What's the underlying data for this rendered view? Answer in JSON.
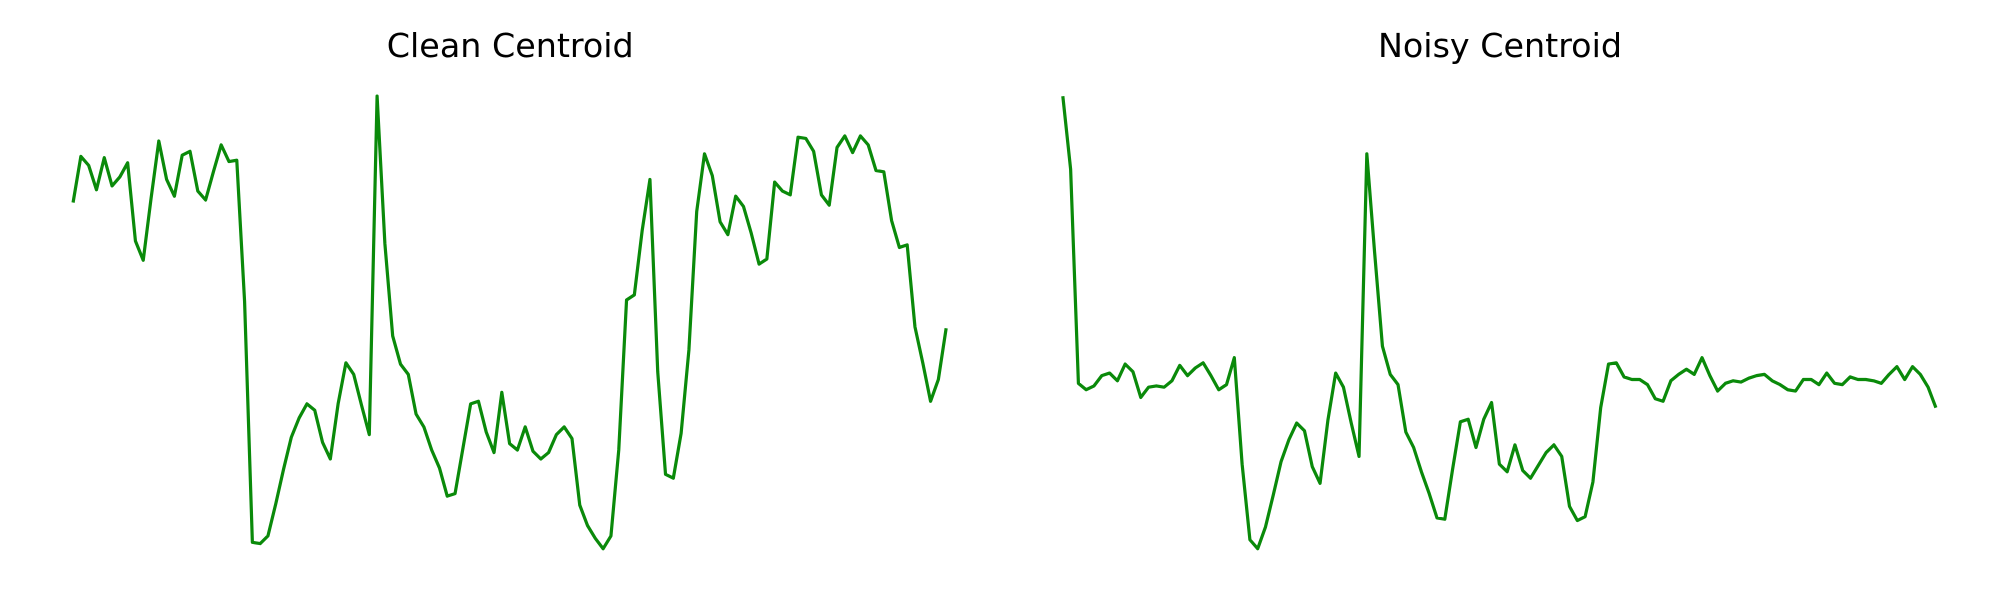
{
  "chart_data": [
    {
      "type": "line",
      "title": "Clean Centroid",
      "color": "#0a8a0a",
      "ylim": [
        40,
        400
      ],
      "values": [
        312,
        348,
        341,
        322,
        347,
        325,
        332,
        343,
        282,
        267,
        315,
        360,
        330,
        317,
        349,
        352,
        321,
        314,
        336,
        357,
        344,
        345,
        235,
        47,
        46,
        52,
        77,
        104,
        129,
        144,
        155,
        150,
        125,
        112,
        155,
        187,
        178,
        154,
        131,
        395,
        280,
        208,
        186,
        178,
        147,
        137,
        119,
        105,
        83,
        85,
        120,
        155,
        157,
        133,
        117,
        164,
        124,
        119,
        137,
        118,
        112,
        117,
        131,
        137,
        128,
        76,
        60,
        50,
        42,
        52,
        119,
        236,
        240,
        290,
        330,
        180,
        100,
        97,
        132,
        197,
        305,
        350,
        333,
        297,
        287,
        317,
        309,
        288,
        264,
        268,
        328,
        321,
        318,
        363,
        362,
        352,
        318,
        310,
        355,
        364,
        351,
        364,
        357,
        337,
        336,
        298,
        277,
        279,
        215,
        187,
        157,
        174,
        214
      ]
    },
    {
      "type": "line",
      "title": "Noisy Centroid",
      "color": "#0a8a0a",
      "ylim": [
        40,
        400
      ],
      "values": [
        395,
        338,
        171,
        166,
        169,
        177,
        179,
        173,
        186,
        180,
        160,
        168,
        169,
        168,
        173,
        185,
        177,
        183,
        187,
        177,
        166,
        170,
        191,
        108,
        49,
        42,
        59,
        84,
        110,
        127,
        140,
        134,
        106,
        93,
        142,
        179,
        168,
        140,
        114,
        350,
        273,
        200,
        178,
        170,
        133,
        121,
        102,
        85,
        66,
        65,
        104,
        141,
        143,
        121,
        143,
        156,
        108,
        102,
        123,
        103,
        97,
        107,
        117,
        123,
        114,
        75,
        64,
        67,
        94,
        152,
        186,
        187,
        176,
        174,
        174,
        170,
        159,
        157,
        173,
        178,
        182,
        178,
        191,
        177,
        165,
        171,
        173,
        172,
        175,
        177,
        178,
        173,
        170,
        166,
        165,
        174,
        174,
        170,
        179,
        171,
        170,
        176,
        174,
        174,
        173,
        171,
        178,
        184,
        174,
        184,
        178,
        168,
        152
      ]
    }
  ]
}
